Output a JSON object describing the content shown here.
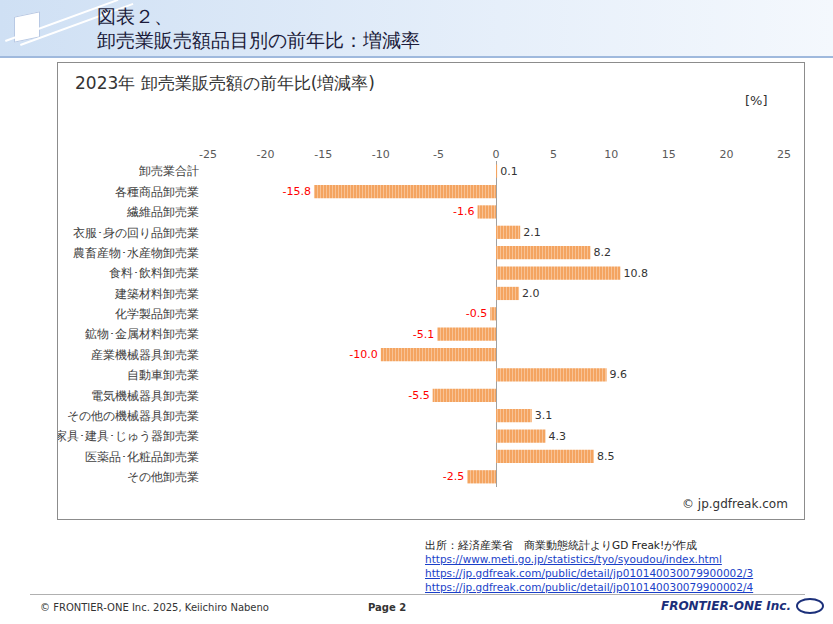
{
  "slide": {
    "header": [
      "図表２、",
      "卸売業販売額品目別の前年比：増減率"
    ],
    "source": {
      "text": "出所：経済産業省　商業動態統計よりGD Freak!が作成",
      "links": [
        "https://www.meti.go.jp/statistics/tyo/syoudou/index.html",
        "https://jp.gdfreak.com/public/detail/jp010140030079900002/3",
        "https://jp.gdfreak.com/public/detail/jp010140030079900002/4"
      ]
    },
    "footer": {
      "copyright": "© FRONTIER-ONE Inc. 2025,  Keiichiro Nabeno",
      "page": "Page 2",
      "company": "FRONTIER-ONE Inc."
    }
  },
  "chart_data": {
    "type": "bar",
    "orientation": "horizontal",
    "title": "2023年 卸売業販売額の前年比(増減率)",
    "unit": "[%]",
    "credit": "© jp.gdfreak.com",
    "categories": [
      "卸売業合計",
      "各種商品卸売業",
      "繊維品卸売業",
      "衣服･身の回り品卸売業",
      "農畜産物･水産物卸売業",
      "食料･飲料卸売業",
      "建築材料卸売業",
      "化学製品卸売業",
      "鉱物･金属材料卸売業",
      "産業機械器具卸売業",
      "自動車卸売業",
      "電気機械器具卸売業",
      "その他の機械器具卸売業",
      "家具･建具･じゅう器卸売業",
      "医薬品･化粧品卸売業",
      "その他卸売業"
    ],
    "values": [
      0.1,
      -15.8,
      -1.6,
      2.1,
      8.2,
      10.8,
      2.0,
      -0.5,
      -5.1,
      -10.0,
      9.6,
      -5.5,
      3.1,
      4.3,
      8.5,
      -2.5
    ],
    "value_labels": [
      "0.1",
      "-15.8",
      "-1.6",
      "2.1",
      "8.2",
      "10.8",
      "2.0",
      "-0.5",
      "-5.1",
      "-10.0",
      "9.6",
      "-5.5",
      "3.1",
      "4.3",
      "8.5",
      "-2.5"
    ],
    "color": "#f4a460",
    "xlim": [
      -25,
      25
    ],
    "xticks": [
      -25,
      -20,
      -15,
      -10,
      -5,
      0,
      5,
      10,
      15,
      20,
      25
    ],
    "grid": false,
    "data_labels": true
  }
}
